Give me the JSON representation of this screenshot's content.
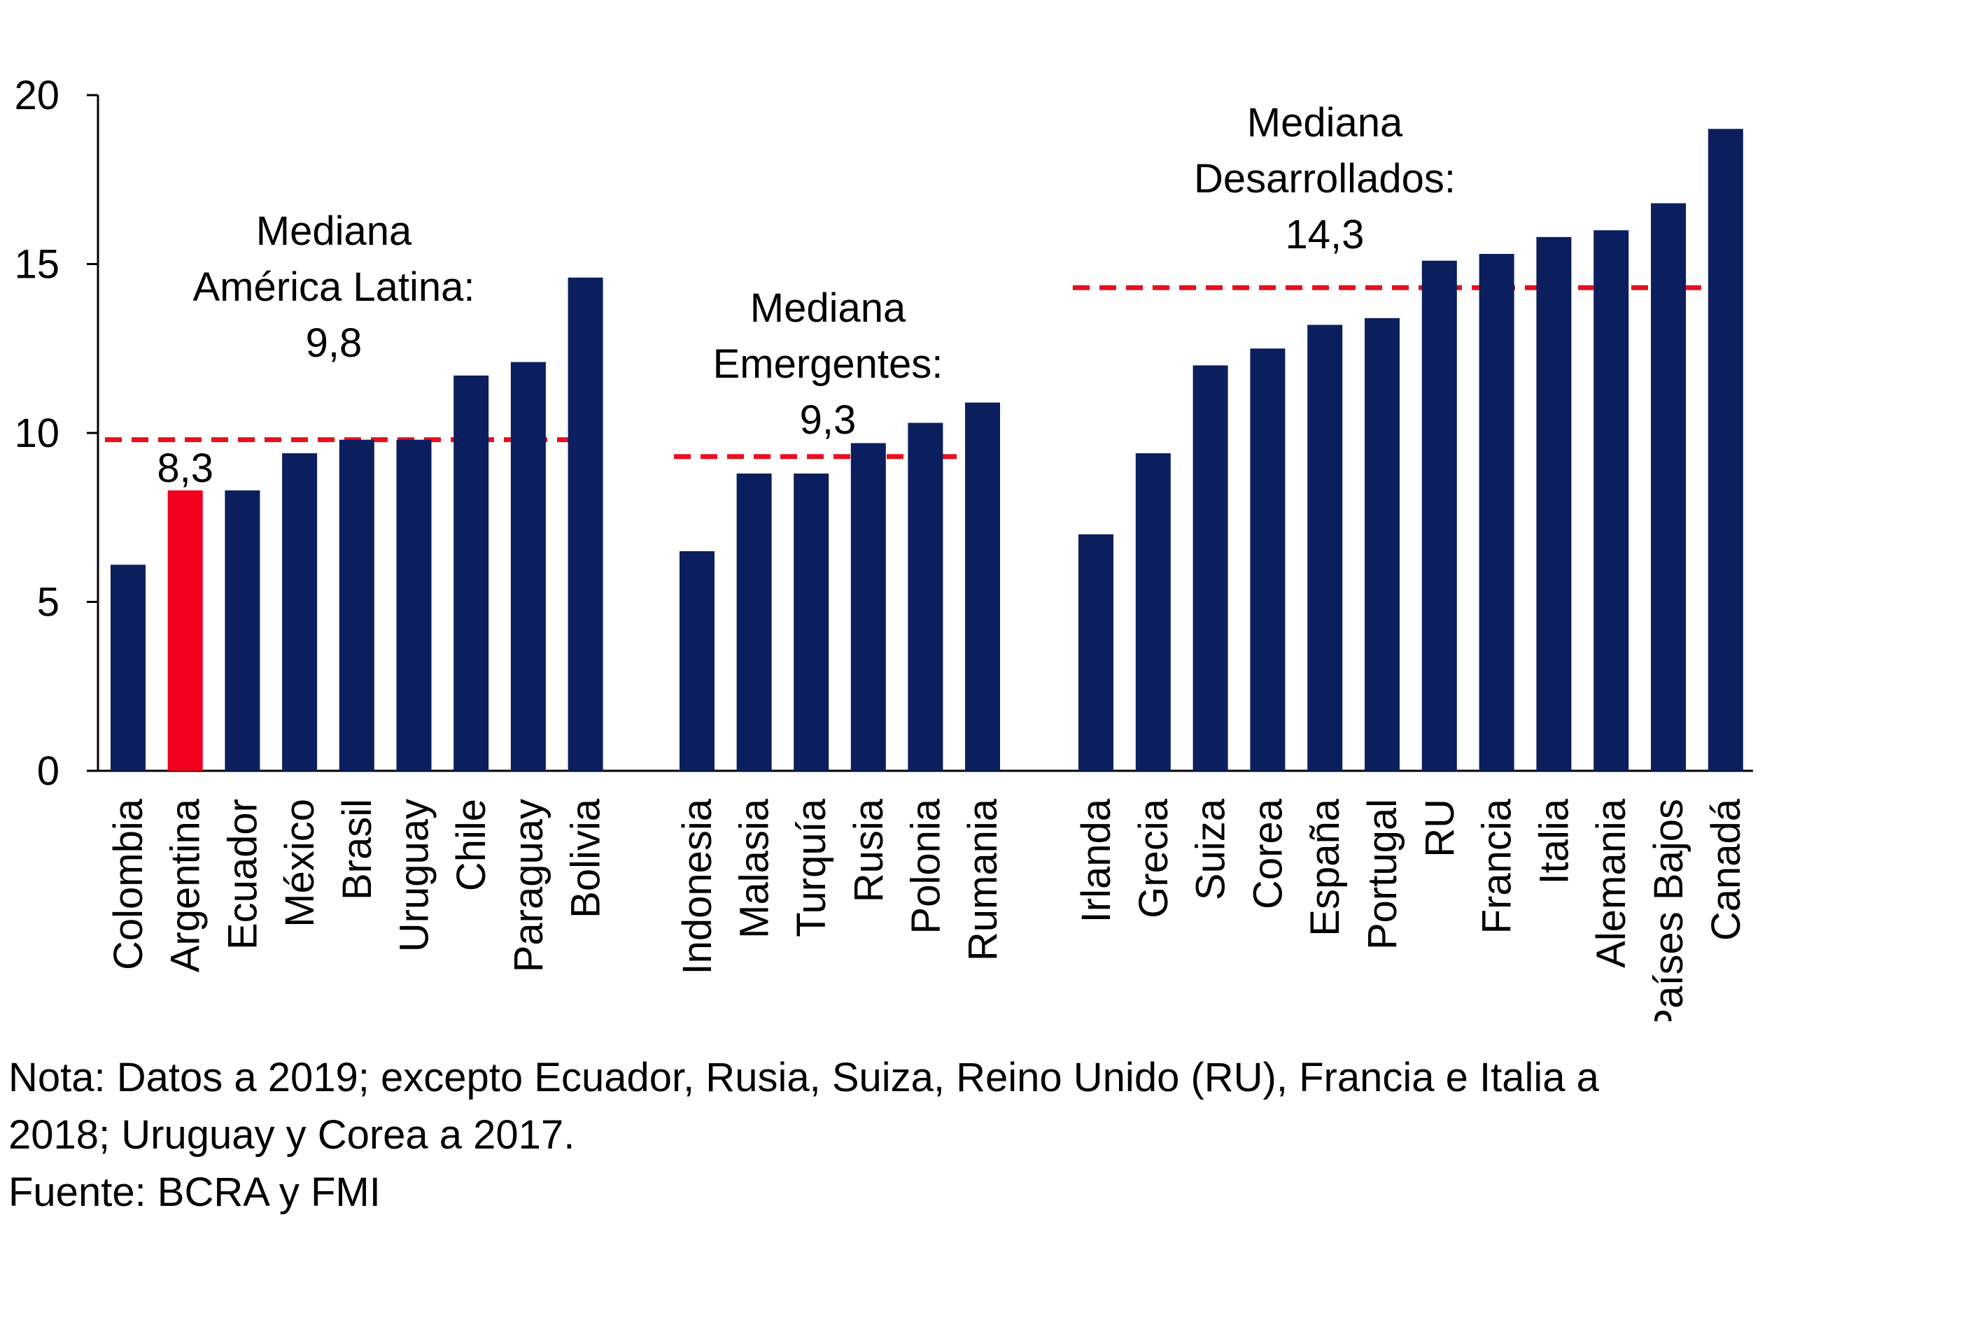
{
  "chart_data": {
    "type": "bar",
    "ylim": [
      0,
      20
    ],
    "yticks": [
      0,
      5,
      10,
      15,
      20
    ],
    "grid": false,
    "colors": {
      "bar": "#0b1f5e",
      "highlight": "#f0001c",
      "median": "#e8101e",
      "axis": "#000000"
    },
    "groups": [
      {
        "name": "América Latina",
        "categories": [
          "Colombia",
          "Argentina",
          "Ecuador",
          "México",
          "Brasil",
          "Uruguay",
          "Chile",
          "Paraguay",
          "Bolivia"
        ],
        "values": [
          6.1,
          8.3,
          8.3,
          9.4,
          9.8,
          9.8,
          11.7,
          12.1,
          14.6
        ],
        "highlight": "Argentina",
        "highlight_label": "8,3",
        "median": 9.8,
        "median_label": [
          "Mediana",
          "América Latina:",
          "9,8"
        ]
      },
      {
        "name": "Emergentes",
        "categories": [
          "Indonesia",
          "Malasia",
          "Turquía",
          "Rusia",
          "Polonia",
          "Rumania"
        ],
        "values": [
          6.5,
          8.8,
          8.8,
          9.7,
          10.3,
          10.9
        ],
        "median": 9.3,
        "median_label": [
          "Mediana",
          "Emergentes:",
          "9,3"
        ]
      },
      {
        "name": "Desarrollados",
        "categories": [
          "Irlanda",
          "Grecia",
          "Suiza",
          "Corea",
          "España",
          "Portugal",
          "RU",
          "Francia",
          "Italia",
          "Alemania",
          "Países Bajos",
          "Canadá"
        ],
        "values": [
          7.0,
          9.4,
          12.0,
          12.5,
          13.2,
          13.4,
          15.1,
          15.3,
          15.8,
          16.0,
          16.8,
          19.0
        ],
        "median": 14.3,
        "median_label": [
          "Mediana",
          "Desarrollados:",
          "14,3"
        ]
      }
    ]
  },
  "notes": {
    "line1": "Nota: Datos a 2019; excepto Ecuador, Rusia, Suiza, Reino Unido (RU), Francia e Italia a",
    "line2": "2018; Uruguay y Corea a 2017.",
    "source": "Fuente: BCRA y FMI"
  }
}
